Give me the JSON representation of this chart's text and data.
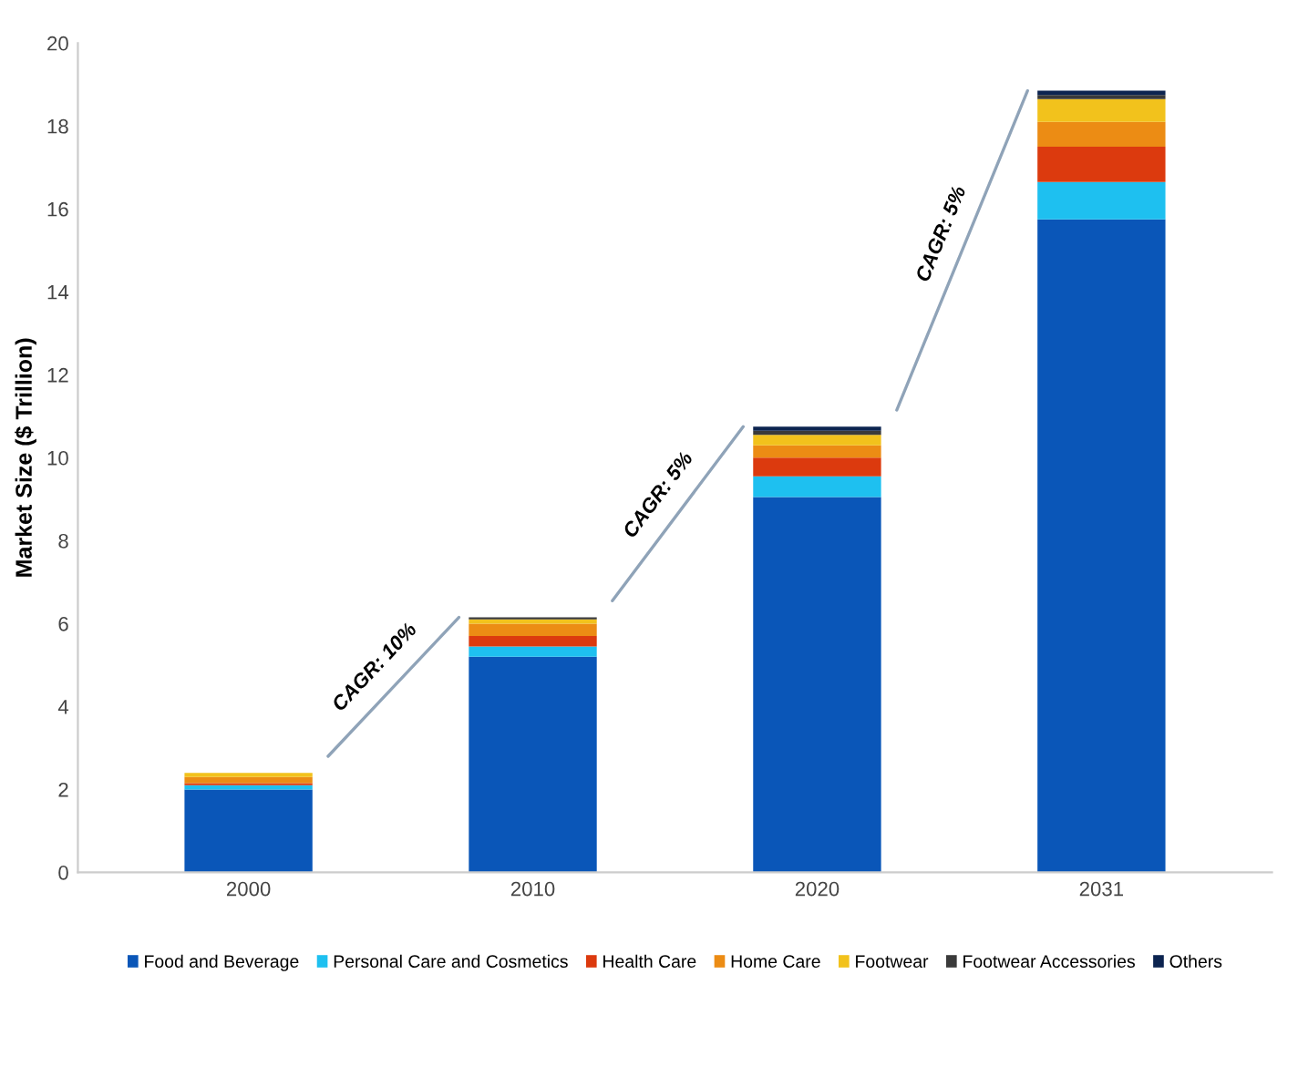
{
  "chart_data": {
    "type": "bar",
    "stacked": true,
    "ylabel": "Market Size ($ Trillion)",
    "categories": [
      "2000",
      "2010",
      "2020",
      "2031"
    ],
    "series": [
      {
        "name": "Food and Beverage",
        "color": "#0a56b8",
        "values": [
          2.0,
          5.2,
          9.05,
          15.75
        ]
      },
      {
        "name": "Personal Care and Cosmetics",
        "color": "#1ec0f0",
        "values": [
          0.1,
          0.25,
          0.5,
          0.9
        ]
      },
      {
        "name": "Health Care",
        "color": "#dc3a0e",
        "values": [
          0.05,
          0.25,
          0.45,
          0.85
        ]
      },
      {
        "name": "Home Care",
        "color": "#ec8c14",
        "values": [
          0.15,
          0.3,
          0.3,
          0.6
        ]
      },
      {
        "name": "Footwear",
        "color": "#f2c21c",
        "values": [
          0.1,
          0.1,
          0.25,
          0.55
        ]
      },
      {
        "name": "Footwear Accessories",
        "color": "#3a3a3a",
        "values": [
          0,
          0.05,
          0.1,
          0.1
        ]
      },
      {
        "name": "Others",
        "color": "#0c2450",
        "values": [
          0,
          0,
          0.1,
          0.1
        ]
      }
    ],
    "ylim": [
      0,
      20
    ],
    "yticks": [
      0,
      2,
      4,
      6,
      8,
      10,
      12,
      14,
      16,
      18,
      20
    ],
    "annotations": [
      "CAGR: 10%",
      "CAGR: 5%",
      "CAGR: 5%"
    ],
    "grid": false,
    "legend": "bottom"
  }
}
